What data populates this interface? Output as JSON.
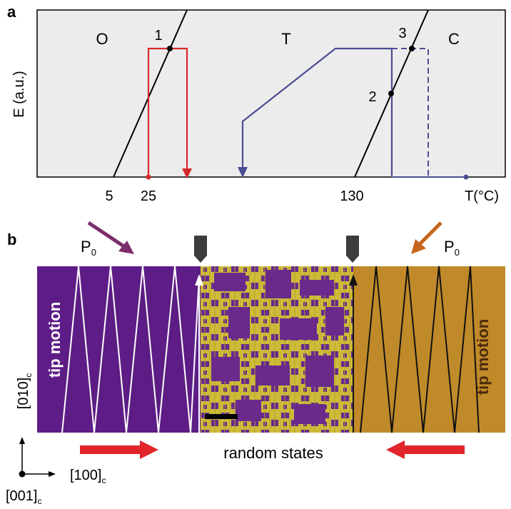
{
  "panel_a": {
    "label": "a",
    "y_axis_label": "E (a.u.)",
    "x_axis_label": "T(°C)",
    "phases": {
      "orthorhombic": "O",
      "tetragonal": "T",
      "cubic": "C"
    },
    "points": {
      "p1": "1",
      "p2": "2",
      "p3": "3"
    },
    "ticks": {
      "t5": "5",
      "t25": "25",
      "t130": "130"
    },
    "colors": {
      "panel_bg": "#ececec",
      "red_path": "#d6282c",
      "blue_path": "#4b4d93",
      "line": "#000000"
    }
  },
  "panel_b": {
    "label": "b",
    "left_polarization": "P",
    "right_polarization": "P",
    "polarization_subscript": "0",
    "left_side_text": "tip motion",
    "right_side_text": "tip motion",
    "center_caption": "random states",
    "axis_y_label": "[010]",
    "axis_x_label": "[100]",
    "axis_z_label": "[001]",
    "axis_subscript": "c",
    "colors": {
      "purple": "#5e1d86",
      "gold": "#c08a2a",
      "yellow": "#cdbb3a",
      "left_arrow": "#7b2d6b",
      "right_arrow": "#c4661e",
      "flow_arrow": "#e0262a",
      "tip": "#3c3c3c"
    }
  }
}
